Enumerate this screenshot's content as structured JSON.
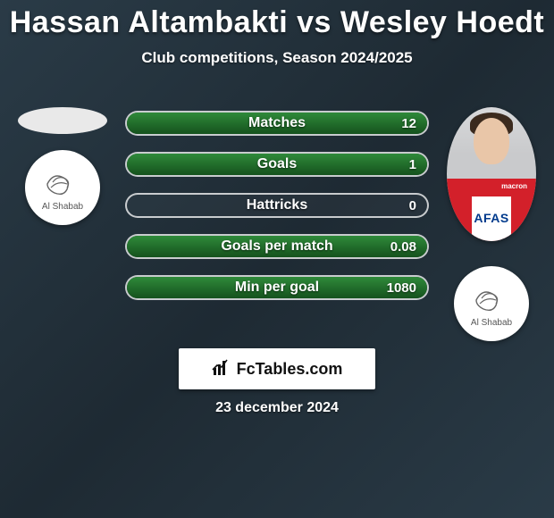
{
  "title": "Hassan Altambakti vs Wesley Hoedt",
  "subtitle": "Club competitions, Season 2024/2025",
  "stats": [
    {
      "label": "Matches",
      "right_value": "12",
      "right_pct": 100
    },
    {
      "label": "Goals",
      "right_value": "1",
      "right_pct": 100
    },
    {
      "label": "Hattricks",
      "right_value": "0",
      "right_pct": 0
    },
    {
      "label": "Goals per match",
      "right_value": "0.08",
      "right_pct": 100
    },
    {
      "label": "Min per goal",
      "right_value": "1080",
      "right_pct": 100
    }
  ],
  "colors": {
    "green_top": "#2f8a3a",
    "green_bottom": "#15521d",
    "border": "rgba(255,255,255,0.75)",
    "bg_grad_a": "#2a3b47",
    "bg_grad_b": "#1e2a33"
  },
  "left": {
    "club_name": "Al Shabab"
  },
  "right": {
    "jersey_text": "AFAS",
    "sponsor_small": "macron",
    "club_name": "Al Shabab"
  },
  "branding": {
    "site": "FcTables.com"
  },
  "footer_date": "23 december 2024"
}
